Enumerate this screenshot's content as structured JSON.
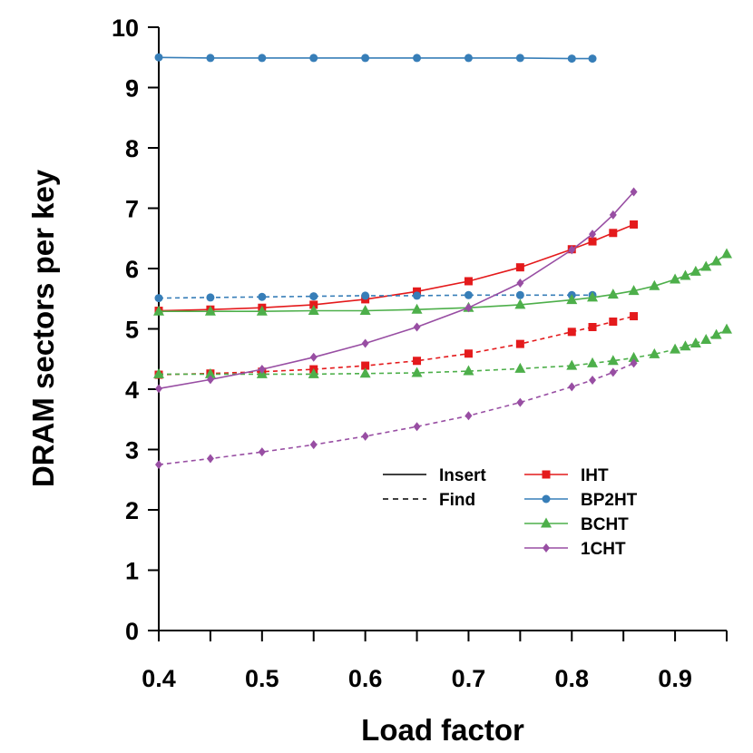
{
  "chart_data": {
    "type": "line",
    "xlabel": "Load factor",
    "ylabel": "DRAM sectors per key",
    "xlim": [
      0.4,
      0.95
    ],
    "ylim": [
      0,
      10
    ],
    "xticks": [
      "0.4",
      "0.5",
      "0.6",
      "0.7",
      "0.8",
      "0.9"
    ],
    "yticks": [
      "0",
      "1",
      "2",
      "3",
      "4",
      "5",
      "6",
      "7",
      "8",
      "9",
      "10"
    ],
    "grid": false,
    "legend_position": "bottom-right",
    "line_style_legend": [
      {
        "label": "Insert",
        "dash": "solid"
      },
      {
        "label": "Find",
        "dash": "dashed"
      }
    ],
    "series": [
      {
        "name": "IHT",
        "color": "#e41a1c",
        "marker": "square",
        "insert": {
          "x": [
            0.4,
            0.45,
            0.5,
            0.55,
            0.6,
            0.65,
            0.7,
            0.75,
            0.8,
            0.82,
            0.84,
            0.86
          ],
          "y": [
            5.3,
            5.32,
            5.35,
            5.4,
            5.49,
            5.62,
            5.79,
            6.02,
            6.32,
            6.45,
            6.59,
            6.73
          ]
        },
        "find": {
          "x": [
            0.4,
            0.45,
            0.5,
            0.55,
            0.6,
            0.65,
            0.7,
            0.75,
            0.8,
            0.82,
            0.84,
            0.86
          ],
          "y": [
            4.24,
            4.26,
            4.29,
            4.33,
            4.39,
            4.47,
            4.59,
            4.75,
            4.95,
            5.03,
            5.12,
            5.21
          ]
        }
      },
      {
        "name": "BP2HT",
        "color": "#377eb8",
        "marker": "circle",
        "insert": {
          "x": [
            0.4,
            0.45,
            0.5,
            0.55,
            0.6,
            0.65,
            0.7,
            0.75,
            0.8,
            0.82
          ],
          "y": [
            9.5,
            9.49,
            9.49,
            9.49,
            9.49,
            9.49,
            9.49,
            9.49,
            9.48,
            9.48
          ]
        },
        "find": {
          "x": [
            0.4,
            0.45,
            0.5,
            0.55,
            0.6,
            0.65,
            0.7,
            0.75,
            0.8,
            0.82
          ],
          "y": [
            5.51,
            5.52,
            5.53,
            5.54,
            5.55,
            5.55,
            5.56,
            5.56,
            5.56,
            5.56
          ]
        }
      },
      {
        "name": "BCHT",
        "color": "#4daf4a",
        "marker": "triangle",
        "insert": {
          "x": [
            0.4,
            0.45,
            0.5,
            0.55,
            0.6,
            0.65,
            0.7,
            0.75,
            0.8,
            0.82,
            0.84,
            0.86,
            0.88,
            0.9,
            0.91,
            0.92,
            0.93,
            0.94,
            0.95
          ],
          "y": [
            5.29,
            5.29,
            5.29,
            5.3,
            5.3,
            5.32,
            5.35,
            5.4,
            5.48,
            5.52,
            5.57,
            5.63,
            5.71,
            5.82,
            5.88,
            5.95,
            6.03,
            6.12,
            6.24
          ]
        },
        "find": {
          "x": [
            0.4,
            0.45,
            0.5,
            0.55,
            0.6,
            0.65,
            0.7,
            0.75,
            0.8,
            0.82,
            0.84,
            0.86,
            0.88,
            0.9,
            0.91,
            0.92,
            0.93,
            0.94,
            0.95
          ],
          "y": [
            4.25,
            4.25,
            4.25,
            4.25,
            4.26,
            4.27,
            4.3,
            4.34,
            4.39,
            4.43,
            4.47,
            4.52,
            4.58,
            4.66,
            4.71,
            4.76,
            4.82,
            4.9,
            4.99
          ]
        }
      },
      {
        "name": "1CHT",
        "color": "#984ea3",
        "marker": "diamond",
        "insert": {
          "x": [
            0.4,
            0.45,
            0.5,
            0.55,
            0.6,
            0.65,
            0.7,
            0.75,
            0.8,
            0.82,
            0.84,
            0.86
          ],
          "y": [
            4.01,
            4.16,
            4.33,
            4.53,
            4.76,
            5.03,
            5.35,
            5.76,
            6.31,
            6.57,
            6.89,
            7.27
          ]
        },
        "find": {
          "x": [
            0.4,
            0.45,
            0.5,
            0.55,
            0.6,
            0.65,
            0.7,
            0.75,
            0.8,
            0.82,
            0.84,
            0.86
          ],
          "y": [
            2.75,
            2.85,
            2.96,
            3.08,
            3.22,
            3.38,
            3.56,
            3.78,
            4.04,
            4.15,
            4.28,
            4.43
          ]
        }
      }
    ]
  }
}
